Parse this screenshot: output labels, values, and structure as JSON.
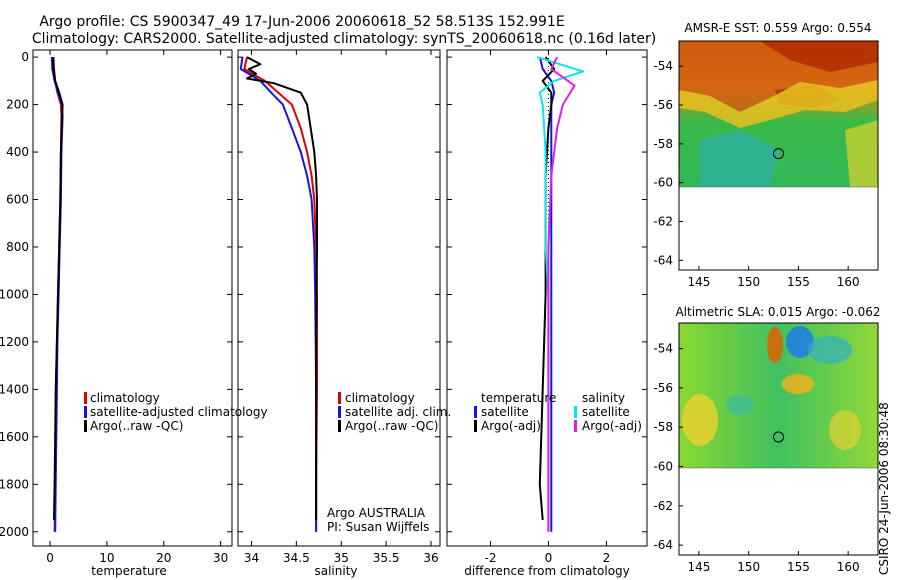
{
  "title_line1": "Argo profile: CS 5900347_49 17-Jun-2006 20060618_52 58.513S 152.991E",
  "title_line2": "Climatology: CARS2000. Satellite-adjusted climatology: synTS_20060618.nc (0.16d later)",
  "footer_stamp": "CSIRO 24-Jun-2006 08:30:48",
  "colors": {
    "climatology": "#e00000",
    "satellite": "#1515e0",
    "argo": "#000000",
    "sal_satellite": "#00e8f0",
    "sal_argo": "#e020e0",
    "marker": "#000000"
  },
  "chart_data": [
    {
      "id": "temperature",
      "type": "line",
      "xlabel": "temperature",
      "xlim": [
        -3,
        32
      ],
      "xticks": [
        0,
        10,
        20,
        30
      ],
      "ylim": [
        2060,
        -30
      ],
      "yticks": [
        0,
        200,
        400,
        600,
        800,
        1000,
        1200,
        1400,
        1600,
        1800,
        2000
      ],
      "legend": [
        "climatology",
        "satellite-adjusted climatology",
        "Argo(..raw -QC)"
      ],
      "series": [
        {
          "name": "climatology",
          "color_key": "climatology",
          "x": [
            0.6,
            0.7,
            0.9,
            1.3,
            1.9,
            2.0,
            1.9,
            1.8,
            1.6,
            1.4,
            1.2,
            1.1,
            1.0,
            0.9,
            0.8
          ],
          "y": [
            0,
            50,
            100,
            150,
            200,
            250,
            400,
            600,
            800,
            1000,
            1200,
            1400,
            1600,
            1800,
            2000
          ]
        },
        {
          "name": "satellite-adjusted climatology",
          "color_key": "satellite",
          "x": [
            0.3,
            0.4,
            0.8,
            1.4,
            2.1,
            2.2,
            2.0,
            1.9,
            1.7,
            1.5,
            1.3,
            1.2,
            1.1,
            1.0,
            0.9
          ],
          "y": [
            0,
            50,
            100,
            150,
            200,
            250,
            400,
            600,
            800,
            1000,
            1200,
            1400,
            1600,
            1800,
            2000
          ]
        },
        {
          "name": "Argo(..raw -QC)",
          "color_key": "argo",
          "x": [
            0.5,
            0.6,
            0.9,
            1.6,
            2.2,
            2.1,
            1.9,
            1.8,
            1.6,
            1.4,
            1.2,
            1.0,
            0.9,
            0.8,
            0.7
          ],
          "y": [
            0,
            50,
            100,
            150,
            200,
            250,
            400,
            600,
            800,
            1000,
            1200,
            1400,
            1600,
            1800,
            1950
          ]
        }
      ]
    },
    {
      "id": "salinity",
      "type": "line",
      "xlabel": "salinity",
      "xlim": [
        33.85,
        36.1
      ],
      "xticks": [
        34,
        34.5,
        35,
        35.5,
        36
      ],
      "xticklabels": [
        "34",
        "34.5",
        "35",
        "35.5",
        "36"
      ],
      "ylim": [
        2060,
        -30
      ],
      "legend": [
        "climatology",
        "satellite adj. clim.",
        "Argo(..raw -QC)"
      ],
      "annotation": [
        "Argo AUSTRALIA",
        "PI: Susan Wijffels"
      ],
      "series": [
        {
          "name": "climatology",
          "color_key": "climatology",
          "x": [
            33.95,
            33.92,
            34.15,
            34.3,
            34.45,
            34.55,
            34.62,
            34.67,
            34.7,
            34.72,
            34.73,
            34.73,
            34.72,
            34.72
          ],
          "y": [
            0,
            50,
            100,
            150,
            200,
            300,
            400,
            500,
            600,
            800,
            1000,
            1400,
            1800,
            2000
          ]
        },
        {
          "name": "satellite adj. clim.",
          "color_key": "satellite",
          "x": [
            33.9,
            33.88,
            34.1,
            34.22,
            34.35,
            34.45,
            34.55,
            34.62,
            34.67,
            34.7,
            34.71,
            34.72,
            34.72,
            34.72
          ],
          "y": [
            0,
            50,
            100,
            150,
            200,
            300,
            400,
            500,
            600,
            800,
            1000,
            1400,
            1800,
            2000
          ]
        },
        {
          "name": "Argo(..raw -QC)",
          "color_key": "argo",
          "x": [
            33.95,
            34.1,
            33.97,
            34.05,
            33.95,
            34.25,
            34.55,
            34.62,
            34.66,
            34.7,
            34.72,
            34.73,
            34.73,
            34.72,
            34.72,
            34.72
          ],
          "y": [
            0,
            30,
            50,
            70,
            90,
            110,
            150,
            200,
            300,
            400,
            500,
            600,
            800,
            1200,
            1600,
            1950
          ]
        }
      ]
    },
    {
      "id": "difference",
      "type": "line",
      "xlabel": "difference from climatology",
      "xlim": [
        -3.5,
        3.4
      ],
      "xticks": [
        -2,
        0,
        2
      ],
      "ylim": [
        2060,
        -30
      ],
      "legend_left_title": "temperature",
      "legend_right_title": "salinity",
      "legend_left": [
        "satellite",
        "Argo(-adj)"
      ],
      "legend_right": [
        "satellite",
        "Argo(-adj)"
      ],
      "series": [
        {
          "name": "temperature satellite",
          "color_key": "satellite",
          "x": [
            -0.3,
            -0.2,
            0.1,
            0.2,
            0.1,
            0.1,
            0.1,
            0.1,
            0.1,
            0.1,
            0.1,
            0.1
          ],
          "y": [
            0,
            50,
            100,
            150,
            200,
            400,
            600,
            800,
            1000,
            1400,
            1800,
            2000
          ]
        },
        {
          "name": "temperature Argo(-adj)",
          "color_key": "argo",
          "x": [
            -0.1,
            0.2,
            -0.2,
            0.1,
            0.1,
            0.0,
            -0.1,
            -0.1,
            -0.1,
            -0.2,
            -0.3,
            -0.2
          ],
          "y": [
            0,
            50,
            100,
            150,
            200,
            300,
            500,
            800,
            1000,
            1400,
            1800,
            1950
          ]
        },
        {
          "name": "salinity satellite",
          "color_key": "sal_satellite",
          "x": [
            -0.4,
            1.2,
            0.2,
            -0.3,
            -0.2,
            -0.1,
            -0.1,
            -0.1,
            0.0,
            0.0,
            0.0,
            0.0
          ],
          "y": [
            0,
            60,
            100,
            150,
            200,
            400,
            600,
            800,
            1000,
            1400,
            1800,
            2000
          ]
        },
        {
          "name": "salinity Argo(-adj)",
          "color_key": "sal_argo",
          "x": [
            0.3,
            0.1,
            0.9,
            0.5,
            0.3,
            0.1,
            0.0,
            0.0,
            0.0,
            0.0
          ],
          "y": [
            0,
            50,
            120,
            200,
            300,
            500,
            800,
            1200,
            1600,
            2000
          ]
        }
      ]
    },
    {
      "id": "sst_map",
      "type": "heatmap",
      "title": "AMSR-E SST: 0.559 Argo: 0.554",
      "xlim": [
        143,
        163
      ],
      "ylim": [
        -64.5,
        -52.7
      ],
      "xticks": [
        145,
        150,
        155,
        160
      ],
      "yticks": [
        -54,
        -56,
        -58,
        -60,
        -62,
        -64
      ],
      "data_extent_lat_bottom": -60,
      "marker": {
        "lon": 153.0,
        "lat": -58.5
      }
    },
    {
      "id": "sla_map",
      "type": "heatmap",
      "title": "Altimetric SLA: 0.015 Argo: -0.062",
      "xlim": [
        143,
        163
      ],
      "ylim": [
        -64.5,
        -52.7
      ],
      "xticks": [
        145,
        150,
        155,
        160
      ],
      "yticks": [
        -54,
        -56,
        -58,
        -60,
        -62,
        -64
      ],
      "data_extent_lat_bottom": -60,
      "marker": {
        "lon": 153.0,
        "lat": -58.5
      }
    }
  ]
}
